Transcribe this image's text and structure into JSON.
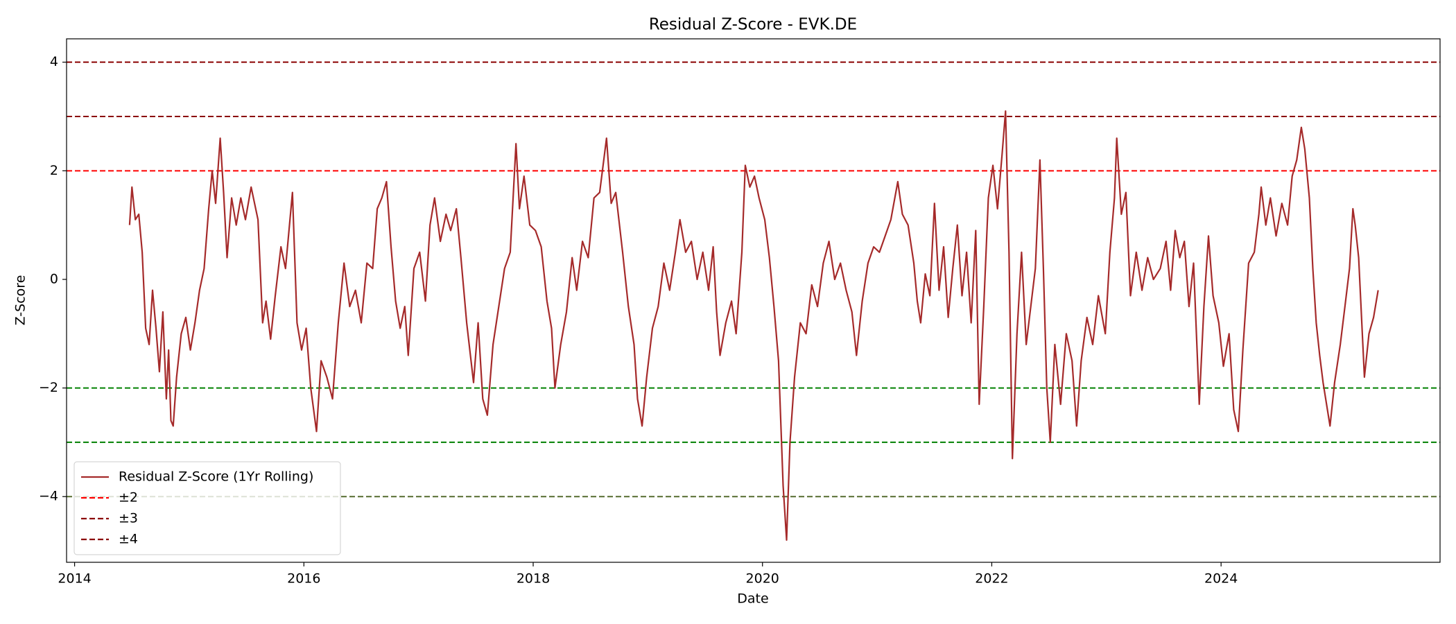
{
  "chart_data": {
    "type": "line",
    "title": "Residual Z-Score - EVK.DE",
    "xlabel": "Date",
    "ylabel": "Z-Score",
    "xlim": [
      2013.93,
      2025.91
    ],
    "xticks": [
      2014,
      2016,
      2018,
      2020,
      2022,
      2024
    ],
    "ylim": [
      -5.21,
      4.43
    ],
    "yticks": [
      {
        "value": -4,
        "label": "−4"
      },
      {
        "value": -2,
        "label": "−2"
      },
      0,
      2,
      4
    ],
    "legend": "lower left",
    "x": [
      2014.48,
      2014.5,
      2014.53,
      2014.56,
      2014.59,
      2014.62,
      2014.65,
      2014.68,
      2014.71,
      2014.74,
      2014.77,
      2014.8,
      2014.82,
      2014.84,
      2014.86,
      2014.89,
      2014.93,
      2014.97,
      2015.01,
      2015.05,
      2015.09,
      2015.13,
      2015.17,
      2015.2,
      2015.23,
      2015.27,
      2015.3,
      2015.33,
      2015.37,
      2015.41,
      2015.45,
      2015.49,
      2015.54,
      2015.6,
      2015.64,
      2015.67,
      2015.71,
      2015.75,
      2015.8,
      2015.84,
      2015.9,
      2015.94,
      2015.98,
      2016.02,
      2016.06,
      2016.11,
      2016.15,
      2016.2,
      2016.25,
      2016.3,
      2016.35,
      2016.4,
      2016.45,
      2016.5,
      2016.55,
      2016.6,
      2016.64,
      2016.68,
      2016.72,
      2016.76,
      2016.8,
      2016.84,
      2016.88,
      2016.91,
      2016.96,
      2017.01,
      2017.06,
      2017.1,
      2017.14,
      2017.19,
      2017.24,
      2017.28,
      2017.33,
      2017.37,
      2017.42,
      2017.48,
      2017.52,
      2017.56,
      2017.6,
      2017.65,
      2017.7,
      2017.75,
      2017.8,
      2017.85,
      2017.88,
      2017.92,
      2017.97,
      2018.02,
      2018.07,
      2018.12,
      2018.16,
      2018.19,
      2018.24,
      2018.29,
      2018.34,
      2018.38,
      2018.43,
      2018.48,
      2018.53,
      2018.58,
      2018.64,
      2018.68,
      2018.72,
      2018.78,
      2018.83,
      2018.88,
      2018.91,
      2018.95,
      2018.99,
      2019.04,
      2019.09,
      2019.14,
      2019.19,
      2019.24,
      2019.28,
      2019.33,
      2019.38,
      2019.43,
      2019.48,
      2019.53,
      2019.57,
      2019.6,
      2019.63,
      2019.68,
      2019.73,
      2019.77,
      2019.82,
      2019.85,
      2019.89,
      2019.93,
      2019.97,
      2020.02,
      2020.06,
      2020.1,
      2020.14,
      2020.18,
      2020.21,
      2020.24,
      2020.28,
      2020.33,
      2020.38,
      2020.43,
      2020.48,
      2020.53,
      2020.58,
      2020.63,
      2020.68,
      2020.73,
      2020.78,
      2020.82,
      2020.87,
      2020.92,
      2020.97,
      2021.02,
      2021.07,
      2021.12,
      2021.18,
      2021.22,
      2021.27,
      2021.32,
      2021.35,
      2021.38,
      2021.42,
      2021.46,
      2021.5,
      2021.54,
      2021.58,
      2021.62,
      2021.66,
      2021.7,
      2021.74,
      2021.78,
      2021.82,
      2021.86,
      2021.89,
      2021.93,
      2021.97,
      2022.01,
      2022.05,
      2022.09,
      2022.12,
      2022.15,
      2022.18,
      2022.22,
      2022.26,
      2022.3,
      2022.34,
      2022.38,
      2022.42,
      2022.45,
      2022.48,
      2022.51,
      2022.55,
      2022.6,
      2022.65,
      2022.7,
      2022.74,
      2022.78,
      2022.83,
      2022.88,
      2022.93,
      2022.99,
      2023.03,
      2023.07,
      2023.09,
      2023.13,
      2023.17,
      2023.21,
      2023.26,
      2023.31,
      2023.36,
      2023.41,
      2023.47,
      2023.52,
      2023.56,
      2023.6,
      2023.64,
      2023.68,
      2023.72,
      2023.76,
      2023.81,
      2023.85,
      2023.89,
      2023.93,
      2023.98,
      2024.02,
      2024.07,
      2024.11,
      2024.15,
      2024.19,
      2024.24,
      2024.29,
      2024.33,
      2024.35,
      2024.39,
      2024.43,
      2024.48,
      2024.53,
      2024.58,
      2024.62,
      2024.66,
      2024.7,
      2024.73,
      2024.77,
      2024.8,
      2024.83,
      2024.86,
      2024.89,
      2024.95,
      2024.99,
      2025.04,
      2025.08,
      2025.12,
      2025.15,
      2025.17,
      2025.2,
      2025.25,
      2025.29,
      2025.33,
      2025.37
    ],
    "series": [
      {
        "name": "Residual Z-Score (1Yr Rolling)",
        "color": "#a52a2a",
        "values": [
          1.0,
          1.7,
          1.1,
          1.2,
          0.5,
          -0.9,
          -1.2,
          -0.2,
          -0.9,
          -1.7,
          -0.6,
          -2.2,
          -1.3,
          -2.6,
          -2.7,
          -1.8,
          -1.0,
          -0.7,
          -1.3,
          -0.8,
          -0.2,
          0.2,
          1.3,
          2.0,
          1.4,
          2.6,
          1.6,
          0.4,
          1.5,
          1.0,
          1.5,
          1.1,
          1.7,
          1.1,
          -0.8,
          -0.4,
          -1.1,
          -0.3,
          0.6,
          0.2,
          1.6,
          -0.8,
          -1.3,
          -0.9,
          -2.0,
          -2.8,
          -1.5,
          -1.8,
          -2.2,
          -0.8,
          0.3,
          -0.5,
          -0.2,
          -0.8,
          0.3,
          0.2,
          1.3,
          1.5,
          1.8,
          0.6,
          -0.4,
          -0.9,
          -0.5,
          -1.4,
          0.2,
          0.5,
          -0.4,
          1.0,
          1.5,
          0.7,
          1.2,
          0.9,
          1.3,
          0.4,
          -0.8,
          -1.9,
          -0.8,
          -2.2,
          -2.5,
          -1.2,
          -0.5,
          0.2,
          0.5,
          2.5,
          1.3,
          1.9,
          1.0,
          0.9,
          0.6,
          -0.4,
          -0.9,
          -2.0,
          -1.2,
          -0.6,
          0.4,
          -0.2,
          0.7,
          0.4,
          1.5,
          1.6,
          2.6,
          1.4,
          1.6,
          0.5,
          -0.5,
          -1.2,
          -2.2,
          -2.7,
          -1.8,
          -0.9,
          -0.5,
          0.3,
          -0.2,
          0.5,
          1.1,
          0.5,
          0.7,
          0.0,
          0.5,
          -0.2,
          0.6,
          -0.6,
          -1.4,
          -0.8,
          -0.4,
          -1.0,
          0.5,
          2.1,
          1.7,
          1.9,
          1.5,
          1.1,
          0.4,
          -0.5,
          -1.5,
          -3.8,
          -4.8,
          -3.0,
          -1.8,
          -0.8,
          -1.0,
          -0.1,
          -0.5,
          0.3,
          0.7,
          0.0,
          0.3,
          -0.2,
          -0.6,
          -1.4,
          -0.4,
          0.3,
          0.6,
          0.5,
          0.8,
          1.1,
          1.8,
          1.2,
          1.0,
          0.3,
          -0.4,
          -0.8,
          0.1,
          -0.3,
          1.4,
          -0.2,
          0.6,
          -0.7,
          0.2,
          1.0,
          -0.3,
          0.5,
          -0.8,
          0.9,
          -2.3,
          -0.5,
          1.5,
          2.1,
          1.3,
          2.3,
          3.1,
          0.5,
          -3.3,
          -1.0,
          0.5,
          -1.2,
          -0.5,
          0.2,
          2.2,
          0.2,
          -2.0,
          -3.0,
          -1.2,
          -2.3,
          -1.0,
          -1.5,
          -2.7,
          -1.5,
          -0.7,
          -1.2,
          -0.3,
          -1.0,
          0.5,
          1.5,
          2.6,
          1.2,
          1.6,
          -0.3,
          0.5,
          -0.2,
          0.4,
          0.0,
          0.2,
          0.7,
          -0.2,
          0.9,
          0.4,
          0.7,
          -0.5,
          0.3,
          -2.3,
          -0.5,
          0.8,
          -0.3,
          -0.8,
          -1.6,
          -1.0,
          -2.4,
          -2.8,
          -1.3,
          0.3,
          0.5,
          1.2,
          1.7,
          1.0,
          1.5,
          0.8,
          1.4,
          1.0,
          1.9,
          2.2,
          2.8,
          2.4,
          1.5,
          0.2,
          -0.8,
          -1.4,
          -1.9,
          -2.7,
          -1.9,
          -1.2,
          -0.5,
          0.2,
          1.3,
          1.0,
          0.4,
          -1.8,
          -1.0,
          -0.7,
          -0.2
        ]
      }
    ],
    "hlines": [
      {
        "name": "±2",
        "values": [
          2,
          -2
        ],
        "colors": [
          "#ff0000",
          "#008000"
        ]
      },
      {
        "name": "±3",
        "values": [
          3,
          -3
        ],
        "colors": [
          "#8b0000",
          "#008000"
        ]
      },
      {
        "name": "±4",
        "values": [
          4,
          -4
        ],
        "colors": [
          "#8b0000",
          "#556b2f"
        ]
      }
    ]
  }
}
